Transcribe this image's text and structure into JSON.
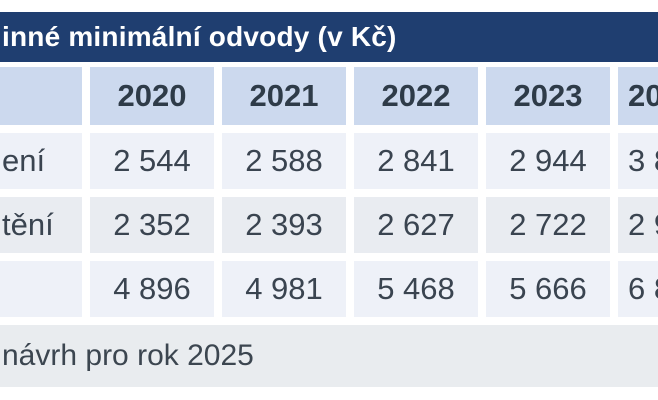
{
  "chart_data": {
    "type": "table",
    "title": "inné minimální odvody (v Kč)",
    "columns": [
      "",
      "2020",
      "2021",
      "2022",
      "2023",
      "20"
    ],
    "rows": [
      {
        "label": "ení",
        "values": [
          "2 544",
          "2 588",
          "2 841",
          "2 944",
          "3 8"
        ]
      },
      {
        "label": "tění",
        "values": [
          "2 352",
          "2 393",
          "2 627",
          "2 722",
          "2 9"
        ]
      },
      {
        "label": "",
        "values": [
          "4 896",
          "4 981",
          "5 468",
          "5 666",
          "6 8"
        ]
      }
    ],
    "footnote": "návrh pro rok 2025",
    "layout": {
      "grid": "off",
      "clipped_left": true,
      "clipped_right": true
    }
  },
  "colors": {
    "title_bar_bg": "#1f3e70",
    "title_text": "#ffffff",
    "header_cell_bg": "#ccd9ee",
    "row_light_bg": "#eef1f8",
    "row_alt_bg": "#e9ecf1",
    "footnote_bg": "#e9ecef",
    "data_text": "#3a4450",
    "gap": "#ffffff"
  }
}
